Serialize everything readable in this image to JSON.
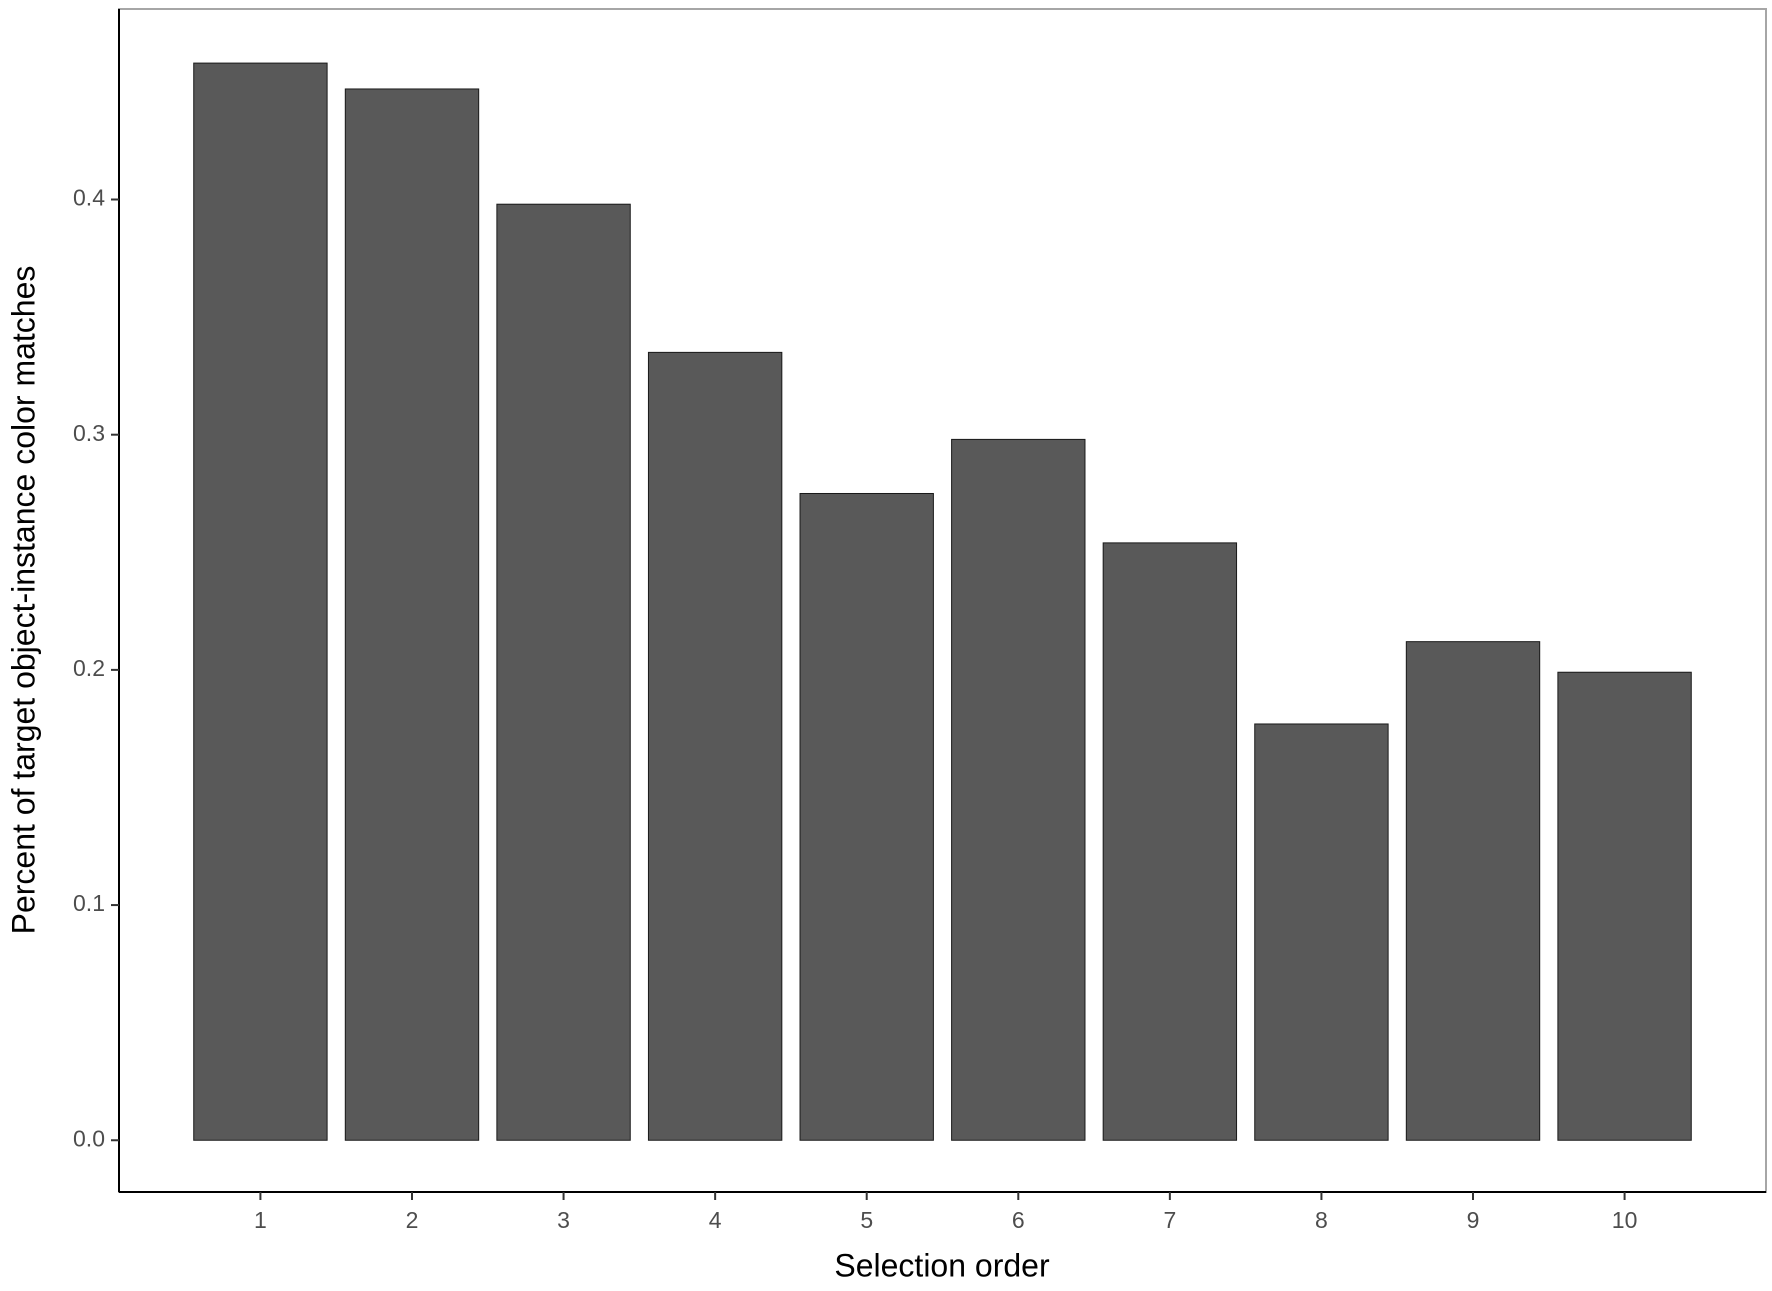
{
  "chart_data": {
    "type": "bar",
    "x_label": "Selection order",
    "y_label": "Percent of target object-instance color matches",
    "categories": [
      "1",
      "2",
      "3",
      "4",
      "5",
      "6",
      "7",
      "8",
      "9",
      "10"
    ],
    "values": [
      0.458,
      0.447,
      0.398,
      0.335,
      0.275,
      0.298,
      0.254,
      0.177,
      0.212,
      0.199
    ],
    "color": "#595959",
    "ylim": [
      -0.022,
      0.481
    ],
    "yticks": [
      {
        "value": 0,
        "label": "0.0"
      },
      0.1,
      0.2,
      0.3,
      0.4
    ],
    "grid": false
  }
}
